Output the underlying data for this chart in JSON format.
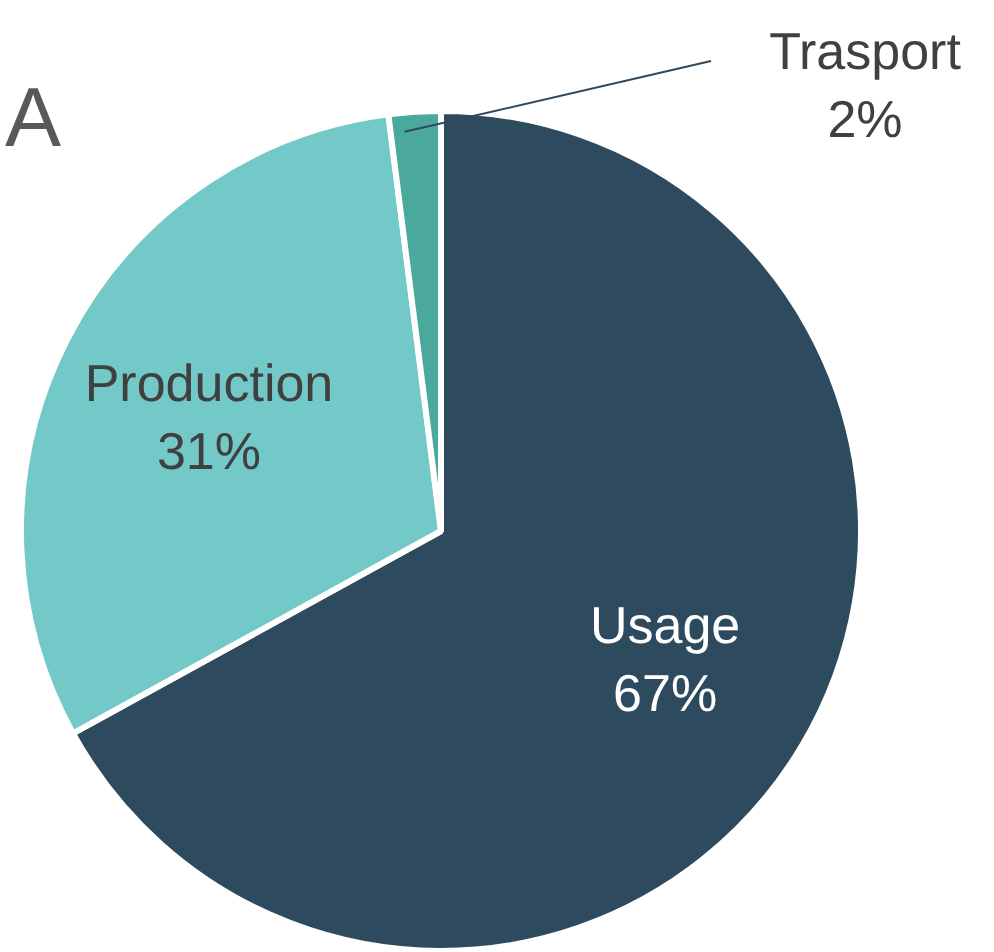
{
  "chart_data": {
    "type": "pie",
    "title": "A",
    "categories": [
      "Usage",
      "Production",
      "Trasport"
    ],
    "values": [
      67,
      31,
      2
    ],
    "value_labels": [
      "67%",
      "31%",
      "2%"
    ],
    "colors": [
      "#2e4a5e",
      "#72c9c8",
      "#4aa89c"
    ]
  }
}
